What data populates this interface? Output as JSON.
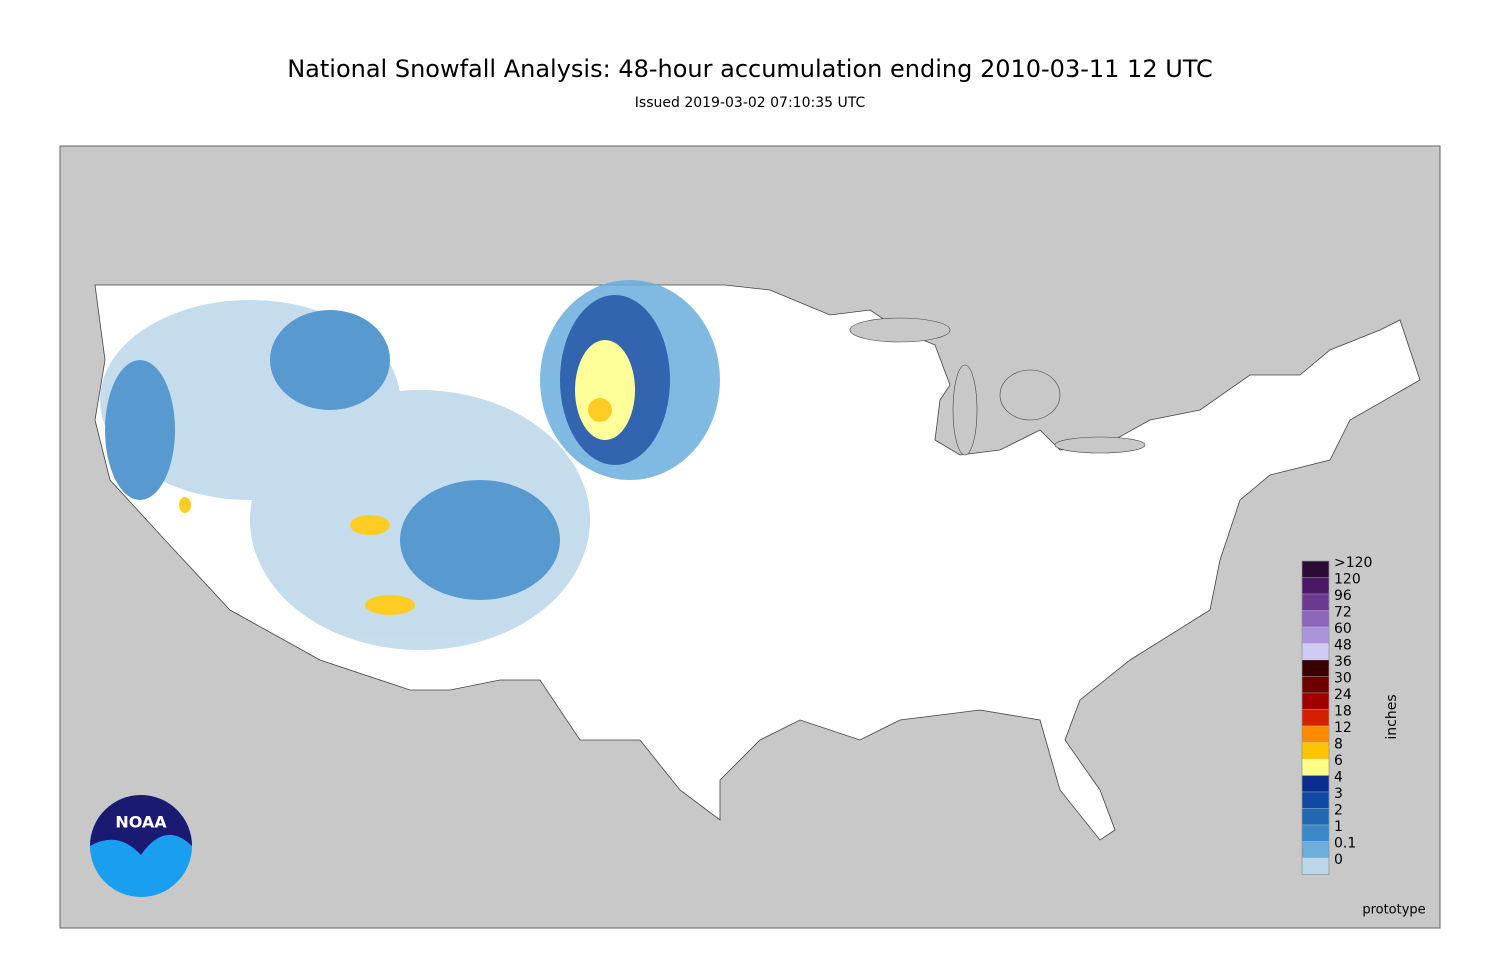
{
  "title": "National Snowfall Analysis: 48-hour accumulation ending 2010-03-11 12 UTC",
  "subtitle": "Issued 2019-03-02 07:10:35 UTC",
  "legend": {
    "label": "inches",
    "bins": [
      {
        "label": ">120",
        "color": "#2b0a36"
      },
      {
        "label": "120",
        "color": "#4b1868"
      },
      {
        "label": "96",
        "color": "#6a3990"
      },
      {
        "label": "72",
        "color": "#8b66bb"
      },
      {
        "label": "60",
        "color": "#ab95da"
      },
      {
        "label": "48",
        "color": "#cfcbf5"
      },
      {
        "label": "36",
        "color": "#3a0000"
      },
      {
        "label": "30",
        "color": "#6e0000"
      },
      {
        "label": "24",
        "color": "#a00000"
      },
      {
        "label": "18",
        "color": "#d42000"
      },
      {
        "label": "12",
        "color": "#ff8a00"
      },
      {
        "label": "8",
        "color": "#ffc400"
      },
      {
        "label": "6",
        "color": "#ffff88"
      },
      {
        "label": "4",
        "color": "#0a2c8c"
      },
      {
        "label": "3",
        "color": "#0f49a2"
      },
      {
        "label": "2",
        "color": "#2068b2"
      },
      {
        "label": "1",
        "color": "#3b88c8"
      },
      {
        "label": "0.1",
        "color": "#6aaedd"
      },
      {
        "label": "0",
        "color": "#bcd7ea"
      }
    ]
  },
  "note": "prototype",
  "logo": "NOAA"
}
